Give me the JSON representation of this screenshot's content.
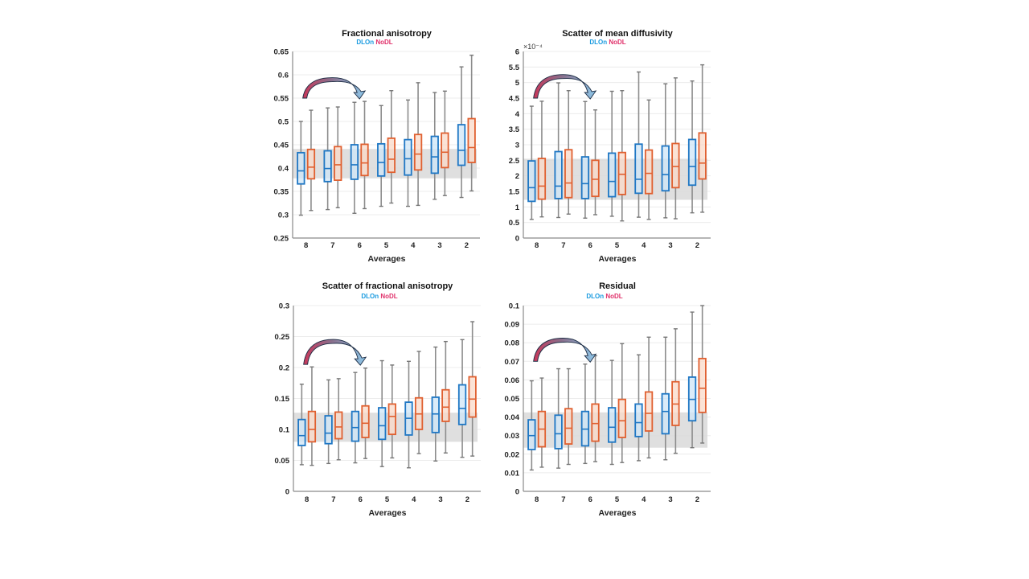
{
  "legend": {
    "series": [
      {
        "name": "DLOn",
        "color": "#1a9be0"
      },
      {
        "name": "NoDL",
        "color": "#e0306a"
      }
    ]
  },
  "colors": {
    "dlon_edge": "#1f77c4",
    "dlon_fill": "#cfe6f7",
    "nodl_edge": "#e06030",
    "nodl_fill": "#f9d9c8",
    "whisker": "#8c8c8c",
    "band": "#d9d9d9",
    "arrow_start": "#c8385a",
    "arrow_end": "#8ec8ea"
  },
  "chart_data": [
    {
      "type": "box",
      "title": "Fractional anisotropy",
      "xlabel": "Averages",
      "ylabel": "",
      "exponent_label": "",
      "categories": [
        "8",
        "7",
        "6",
        "5",
        "4",
        "3",
        "2"
      ],
      "ylim": [
        0.25,
        0.65
      ],
      "yticks": [
        0.25,
        0.3,
        0.35,
        0.4,
        0.45,
        0.5,
        0.55,
        0.6,
        0.65
      ],
      "ytick_labels": [
        "0.25",
        "0.3",
        "0.35",
        "0.4",
        "0.45",
        "0.5",
        "0.55",
        "0.6",
        "0.65"
      ],
      "grid": true,
      "reference_band": [
        0.378,
        0.441
      ],
      "arrow": {
        "from_category": "8",
        "to_category": "6",
        "height": 0.58,
        "base": 0.55
      },
      "series": [
        {
          "name": "DLOn",
          "boxes": [
            {
              "min": 0.299,
              "q1": 0.366,
              "median": 0.394,
              "q3": 0.433,
              "max": 0.5
            },
            {
              "min": 0.311,
              "q1": 0.371,
              "median": 0.399,
              "q3": 0.437,
              "max": 0.529
            },
            {
              "min": 0.303,
              "q1": 0.376,
              "median": 0.407,
              "q3": 0.45,
              "max": 0.541
            },
            {
              "min": 0.318,
              "q1": 0.383,
              "median": 0.412,
              "q3": 0.452,
              "max": 0.534
            },
            {
              "min": 0.318,
              "q1": 0.385,
              "median": 0.42,
              "q3": 0.461,
              "max": 0.546
            },
            {
              "min": 0.333,
              "q1": 0.389,
              "median": 0.424,
              "q3": 0.468,
              "max": 0.562
            },
            {
              "min": 0.337,
              "q1": 0.406,
              "median": 0.438,
              "q3": 0.493,
              "max": 0.617
            }
          ]
        },
        {
          "name": "NoDL",
          "boxes": [
            {
              "min": 0.309,
              "q1": 0.377,
              "median": 0.402,
              "q3": 0.44,
              "max": 0.524
            },
            {
              "min": 0.315,
              "q1": 0.374,
              "median": 0.407,
              "q3": 0.446,
              "max": 0.531
            },
            {
              "min": 0.313,
              "q1": 0.384,
              "median": 0.411,
              "q3": 0.451,
              "max": 0.543
            },
            {
              "min": 0.325,
              "q1": 0.391,
              "median": 0.419,
              "q3": 0.464,
              "max": 0.566
            },
            {
              "min": 0.32,
              "q1": 0.396,
              "median": 0.43,
              "q3": 0.472,
              "max": 0.583
            },
            {
              "min": 0.341,
              "q1": 0.401,
              "median": 0.434,
              "q3": 0.475,
              "max": 0.565
            },
            {
              "min": 0.351,
              "q1": 0.412,
              "median": 0.444,
              "q3": 0.506,
              "max": 0.642
            }
          ]
        }
      ]
    },
    {
      "type": "box",
      "title": "Scatter of mean diffusivity",
      "xlabel": "Averages",
      "ylabel": "",
      "exponent_label": "×10⁻⁴",
      "categories": [
        "8",
        "7",
        "6",
        "5",
        "4",
        "3",
        "2"
      ],
      "ylim": [
        0,
        6
      ],
      "yticks": [
        0,
        0.5,
        1,
        1.5,
        2,
        2.5,
        3,
        3.5,
        4,
        4.5,
        5,
        5.5,
        6
      ],
      "ytick_labels": [
        "0",
        "0.5",
        "1",
        "1.5",
        "2",
        "2.5",
        "3",
        "3.5",
        "4",
        "4.5",
        "5",
        "5.5",
        "6"
      ],
      "grid": true,
      "reference_band": [
        1.23,
        2.55
      ],
      "arrow": {
        "from_category": "8",
        "to_category": "6",
        "height": 5.05,
        "base": 4.5
      },
      "series": [
        {
          "name": "DLOn",
          "boxes": [
            {
              "min": 0.6,
              "q1": 1.18,
              "median": 1.62,
              "q3": 2.48,
              "max": 4.24
            },
            {
              "min": 0.66,
              "q1": 1.27,
              "median": 1.67,
              "q3": 2.78,
              "max": 4.99
            },
            {
              "min": 0.64,
              "q1": 1.27,
              "median": 1.75,
              "q3": 2.61,
              "max": 4.39
            },
            {
              "min": 0.7,
              "q1": 1.33,
              "median": 1.82,
              "q3": 2.73,
              "max": 4.72
            },
            {
              "min": 0.67,
              "q1": 1.44,
              "median": 1.89,
              "q3": 3.02,
              "max": 5.34
            },
            {
              "min": 0.65,
              "q1": 1.52,
              "median": 2.04,
              "q3": 2.96,
              "max": 4.96
            },
            {
              "min": 0.81,
              "q1": 1.7,
              "median": 2.3,
              "q3": 3.17,
              "max": 5.05
            }
          ]
        },
        {
          "name": "NoDL",
          "boxes": [
            {
              "min": 0.68,
              "q1": 1.25,
              "median": 1.67,
              "q3": 2.56,
              "max": 4.4
            },
            {
              "min": 0.77,
              "q1": 1.3,
              "median": 1.77,
              "q3": 2.84,
              "max": 4.74
            },
            {
              "min": 0.75,
              "q1": 1.34,
              "median": 1.89,
              "q3": 2.5,
              "max": 4.12
            },
            {
              "min": 0.55,
              "q1": 1.4,
              "median": 2.05,
              "q3": 2.75,
              "max": 4.74
            },
            {
              "min": 0.6,
              "q1": 1.43,
              "median": 2.08,
              "q3": 2.83,
              "max": 4.44
            },
            {
              "min": 0.62,
              "q1": 1.62,
              "median": 2.3,
              "q3": 3.04,
              "max": 5.15
            },
            {
              "min": 0.83,
              "q1": 1.9,
              "median": 2.41,
              "q3": 3.38,
              "max": 5.57
            }
          ]
        }
      ]
    },
    {
      "type": "box",
      "title": "Scatter of fractional anisotropy",
      "xlabel": "Averages",
      "ylabel": "",
      "exponent_label": "",
      "categories": [
        "8",
        "7",
        "6",
        "5",
        "4",
        "3",
        "2"
      ],
      "ylim": [
        0,
        0.3
      ],
      "yticks": [
        0,
        0.05,
        0.1,
        0.15,
        0.2,
        0.25,
        0.3
      ],
      "ytick_labels": [
        "0",
        "0.05",
        "0.1",
        "0.15",
        "0.2",
        "0.25",
        "0.3"
      ],
      "grid": true,
      "reference_band": [
        0.08,
        0.127
      ],
      "arrow": {
        "from_category": "8",
        "to_category": "6",
        "height": 0.235,
        "base": 0.205
      },
      "series": [
        {
          "name": "DLOn",
          "boxes": [
            {
              "min": 0.043,
              "q1": 0.074,
              "median": 0.09,
              "q3": 0.116,
              "max": 0.173
            },
            {
              "min": 0.045,
              "q1": 0.077,
              "median": 0.094,
              "q3": 0.122,
              "max": 0.18
            },
            {
              "min": 0.046,
              "q1": 0.081,
              "median": 0.103,
              "q3": 0.129,
              "max": 0.192
            },
            {
              "min": 0.04,
              "q1": 0.084,
              "median": 0.106,
              "q3": 0.135,
              "max": 0.211
            },
            {
              "min": 0.038,
              "q1": 0.091,
              "median": 0.118,
              "q3": 0.144,
              "max": 0.21
            },
            {
              "min": 0.049,
              "q1": 0.095,
              "median": 0.125,
              "q3": 0.152,
              "max": 0.233
            },
            {
              "min": 0.055,
              "q1": 0.108,
              "median": 0.134,
              "q3": 0.172,
              "max": 0.245
            }
          ]
        },
        {
          "name": "NoDL",
          "boxes": [
            {
              "min": 0.042,
              "q1": 0.08,
              "median": 0.1,
              "q3": 0.129,
              "max": 0.201
            },
            {
              "min": 0.051,
              "q1": 0.085,
              "median": 0.104,
              "q3": 0.128,
              "max": 0.182
            },
            {
              "min": 0.053,
              "q1": 0.087,
              "median": 0.11,
              "q3": 0.138,
              "max": 0.199
            },
            {
              "min": 0.054,
              "q1": 0.092,
              "median": 0.121,
              "q3": 0.141,
              "max": 0.204
            },
            {
              "min": 0.061,
              "q1": 0.1,
              "median": 0.125,
              "q3": 0.151,
              "max": 0.226
            },
            {
              "min": 0.062,
              "q1": 0.113,
              "median": 0.136,
              "q3": 0.164,
              "max": 0.242
            },
            {
              "min": 0.057,
              "q1": 0.12,
              "median": 0.149,
              "q3": 0.185,
              "max": 0.274
            }
          ]
        }
      ]
    },
    {
      "type": "box",
      "title": "Residual",
      "xlabel": "Averages",
      "ylabel": "",
      "exponent_label": "",
      "categories": [
        "8",
        "7",
        "6",
        "5",
        "4",
        "3",
        "2"
      ],
      "ylim": [
        0,
        0.1
      ],
      "yticks": [
        0,
        0.01,
        0.02,
        0.03,
        0.04,
        0.05,
        0.06,
        0.07,
        0.08,
        0.09,
        0.1
      ],
      "ytick_labels": [
        "0",
        "0.01",
        "0.02",
        "0.03",
        "0.04",
        "0.05",
        "0.06",
        "0.07",
        "0.08",
        "0.09",
        "0.1"
      ],
      "grid": true,
      "reference_band": [
        0.0235,
        0.0425
      ],
      "arrow": {
        "from_category": "8",
        "to_category": "6",
        "height": 0.079,
        "base": 0.07
      },
      "series": [
        {
          "name": "DLOn",
          "boxes": [
            {
              "min": 0.0115,
              "q1": 0.0225,
              "median": 0.03,
              "q3": 0.0385,
              "max": 0.0595
            },
            {
              "min": 0.0125,
              "q1": 0.023,
              "median": 0.031,
              "q3": 0.041,
              "max": 0.066
            },
            {
              "min": 0.015,
              "q1": 0.0245,
              "median": 0.0335,
              "q3": 0.043,
              "max": 0.0685
            },
            {
              "min": 0.0145,
              "q1": 0.0265,
              "median": 0.0345,
              "q3": 0.045,
              "max": 0.0705
            },
            {
              "min": 0.0165,
              "q1": 0.0295,
              "median": 0.037,
              "q3": 0.047,
              "max": 0.0735
            },
            {
              "min": 0.017,
              "q1": 0.031,
              "median": 0.043,
              "q3": 0.0525,
              "max": 0.083
            },
            {
              "min": 0.0235,
              "q1": 0.038,
              "median": 0.0495,
              "q3": 0.0615,
              "max": 0.0965
            }
          ]
        },
        {
          "name": "NoDL",
          "boxes": [
            {
              "min": 0.013,
              "q1": 0.024,
              "median": 0.0335,
              "q3": 0.043,
              "max": 0.061
            },
            {
              "min": 0.0145,
              "q1": 0.0255,
              "median": 0.034,
              "q3": 0.0445,
              "max": 0.066
            },
            {
              "min": 0.016,
              "q1": 0.027,
              "median": 0.0365,
              "q3": 0.047,
              "max": 0.073
            },
            {
              "min": 0.0155,
              "q1": 0.029,
              "median": 0.038,
              "q3": 0.0495,
              "max": 0.0795
            },
            {
              "min": 0.018,
              "q1": 0.0325,
              "median": 0.042,
              "q3": 0.0535,
              "max": 0.083
            },
            {
              "min": 0.0205,
              "q1": 0.0355,
              "median": 0.047,
              "q3": 0.059,
              "max": 0.0875
            },
            {
              "min": 0.026,
              "q1": 0.0425,
              "median": 0.0555,
              "q3": 0.0715,
              "max": 0.1
            }
          ]
        }
      ]
    }
  ]
}
